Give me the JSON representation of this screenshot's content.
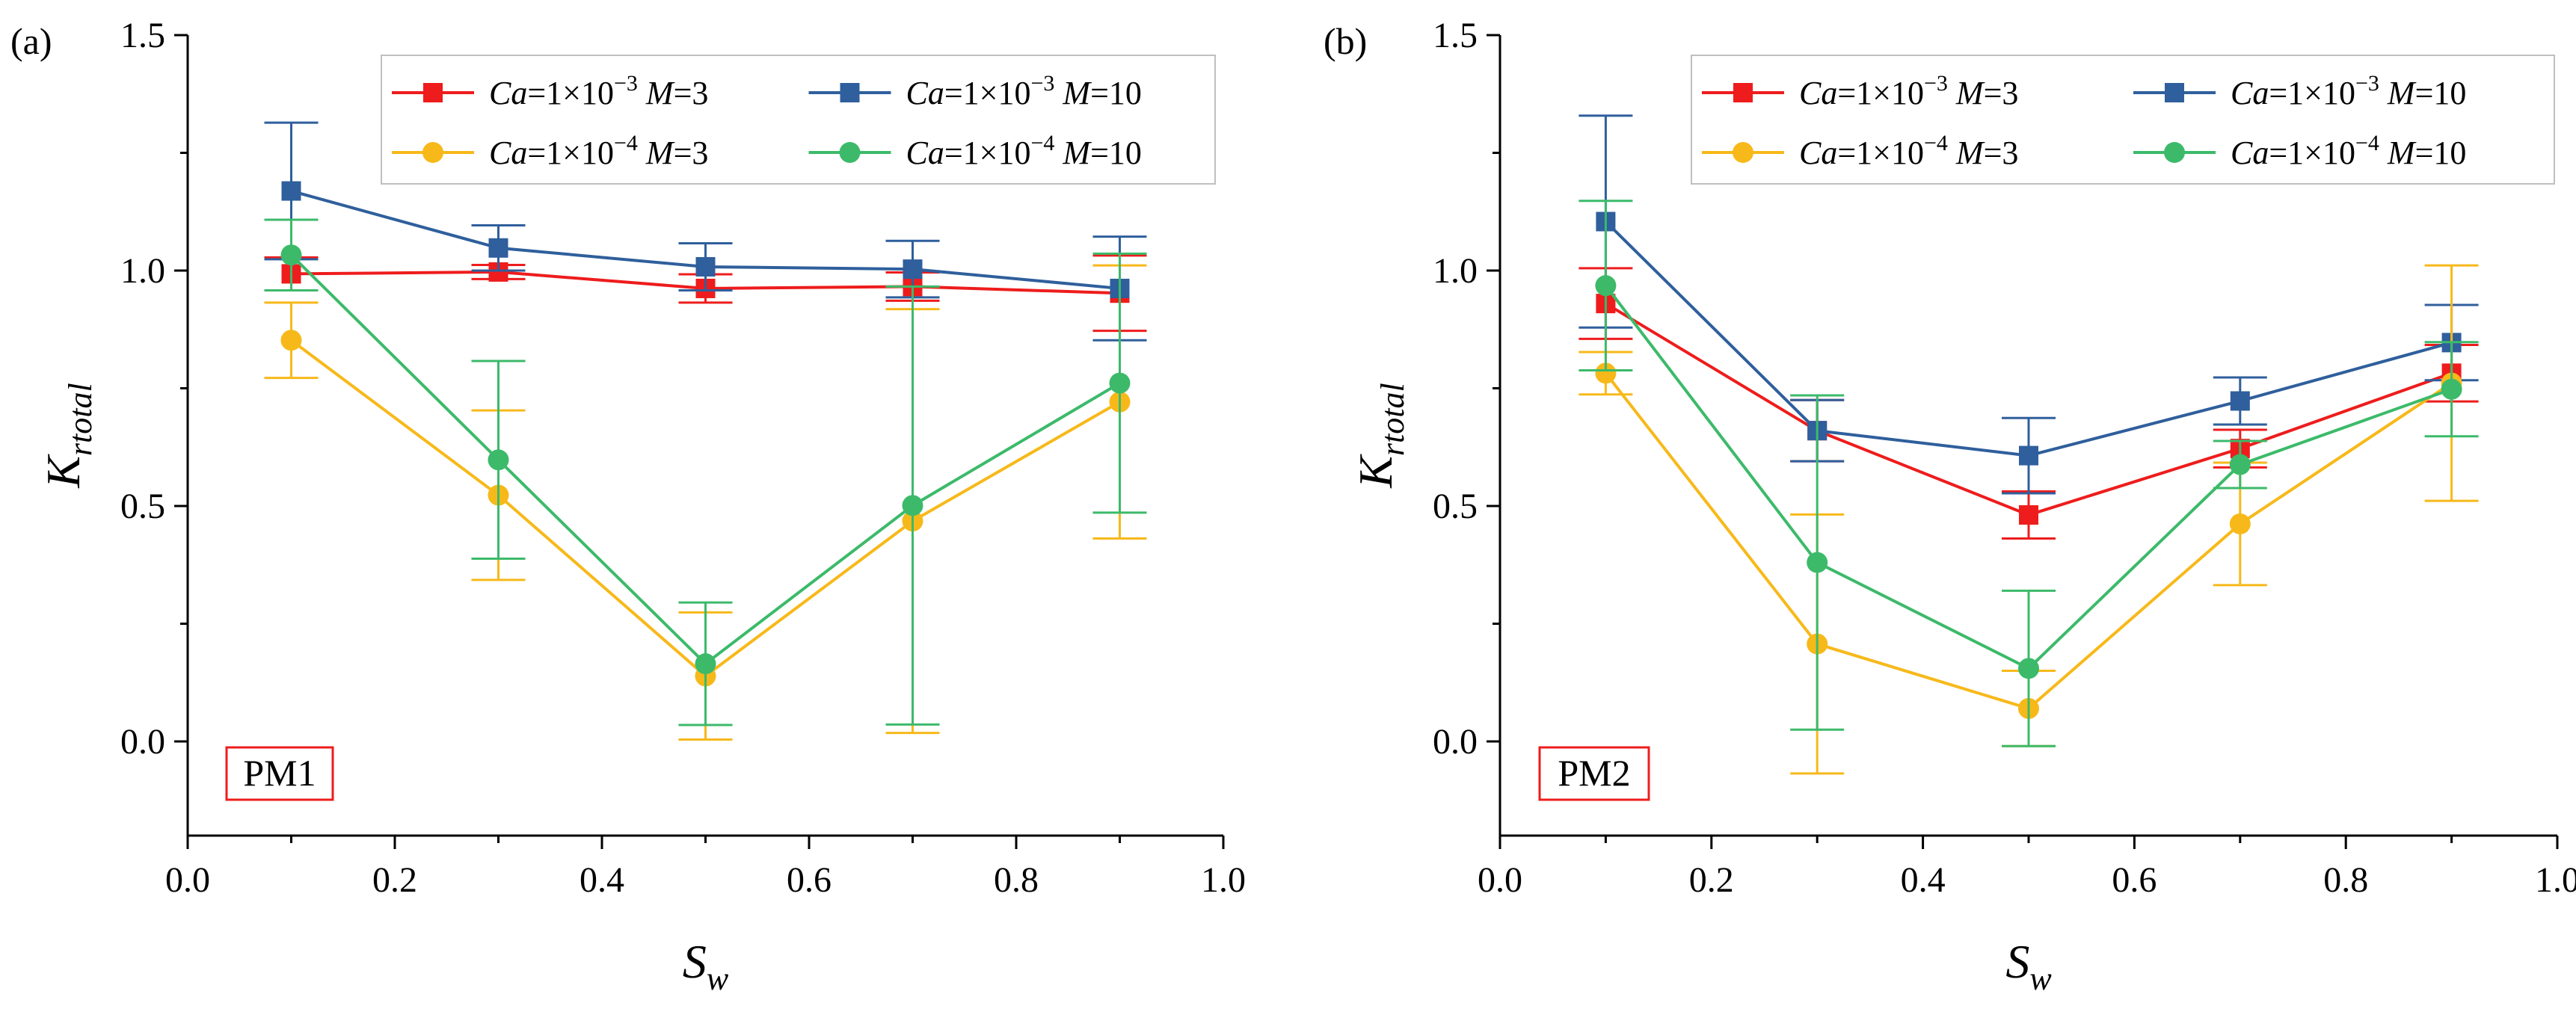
{
  "panels": [
    {
      "label": "(a)",
      "pm_label": "PM1",
      "chart_data": {
        "type": "line",
        "xlabel": "S_w",
        "ylabel": "K_rtotal",
        "xlim": [
          0.0,
          1.0
        ],
        "ylim": [
          -0.2,
          1.5
        ],
        "xticks": [
          "0.0",
          "0.2",
          "0.4",
          "0.6",
          "0.8",
          "1.0"
        ],
        "yticks": [
          "0.0",
          "0.5",
          "1.0",
          "1.5"
        ],
        "legend_position": "top-right",
        "x": [
          0.1,
          0.3,
          0.5,
          0.7,
          0.9
        ],
        "series": [
          {
            "name": "Ca=1×10−3 M=3",
            "color": "#ee1c1c",
            "marker": "square",
            "values": [
              0.993,
              0.997,
              0.962,
              0.966,
              0.952
            ],
            "err": [
              0.035,
              0.015,
              0.03,
              0.03,
              0.08
            ]
          },
          {
            "name": "Ca=1×10−3 M=10",
            "color": "#2f5f9c",
            "marker": "square",
            "values": [
              1.169,
              1.048,
              1.008,
              1.003,
              0.962
            ],
            "err": [
              0.145,
              0.048,
              0.05,
              0.06,
              0.11
            ]
          },
          {
            "name": "Ca=1×10−4 M=3",
            "color": "#f7b91a",
            "marker": "circle",
            "values": [
              0.852,
              0.523,
              0.139,
              0.468,
              0.721
            ],
            "err": [
              0.08,
              0.18,
              0.135,
              0.45,
              0.29
            ]
          },
          {
            "name": "Ca=1×10−4 M=10",
            "color": "#3cba6a",
            "marker": "circle",
            "values": [
              1.033,
              0.598,
              0.165,
              0.501,
              0.761
            ],
            "err": [
              0.075,
              0.21,
              0.13,
              0.465,
              0.275
            ]
          }
        ]
      }
    },
    {
      "label": "(b)",
      "pm_label": "PM2",
      "chart_data": {
        "type": "line",
        "xlabel": "S_w",
        "ylabel": "K_rtotal",
        "xlim": [
          0.0,
          1.0
        ],
        "ylim": [
          -0.2,
          1.5
        ],
        "xticks": [
          "0.0",
          "0.2",
          "0.4",
          "0.6",
          "0.8",
          "1.0"
        ],
        "yticks": [
          "0.0",
          "0.5",
          "1.0",
          "1.5"
        ],
        "legend_position": "top-right",
        "x": [
          0.1,
          0.3,
          0.5,
          0.7,
          0.9
        ],
        "series": [
          {
            "name": "Ca=1×10−3 M=3",
            "color": "#ee1c1c",
            "marker": "square",
            "values": [
              0.93,
              0.66,
              0.481,
              0.622,
              0.782
            ],
            "err": [
              0.075,
              0.065,
              0.05,
              0.04,
              0.06
            ]
          },
          {
            "name": "Ca=1×10−3 M=10",
            "color": "#2f5f9c",
            "marker": "square",
            "values": [
              1.104,
              0.66,
              0.607,
              0.723,
              0.847
            ],
            "err": [
              0.225,
              0.065,
              0.08,
              0.05,
              0.08
            ]
          },
          {
            "name": "Ca=1×10−4 M=3",
            "color": "#f7b91a",
            "marker": "circle",
            "values": [
              0.782,
              0.207,
              0.07,
              0.462,
              0.761
            ],
            "err": [
              0.045,
              0.275,
              0.08,
              0.13,
              0.25
            ]
          },
          {
            "name": "Ca=1×10−4 M=10",
            "color": "#3cba6a",
            "marker": "circle",
            "values": [
              0.968,
              0.38,
              0.155,
              0.588,
              0.748
            ],
            "err": [
              0.18,
              0.355,
              0.165,
              0.05,
              0.1
            ]
          }
        ]
      }
    }
  ],
  "legend_entries": [
    {
      "ca_base": "1×10",
      "ca_exp": "−3",
      "m": "3"
    },
    {
      "ca_base": "1×10",
      "ca_exp": "−3",
      "m": "10"
    },
    {
      "ca_base": "1×10",
      "ca_exp": "−4",
      "m": "3"
    },
    {
      "ca_base": "1×10",
      "ca_exp": "−4",
      "m": "10"
    }
  ],
  "axis_text": {
    "x_main": "S",
    "x_sub": "w",
    "y_main": "K",
    "y_sub": "rtotal",
    "ca_prefix": "Ca",
    "m_prefix": "M"
  }
}
